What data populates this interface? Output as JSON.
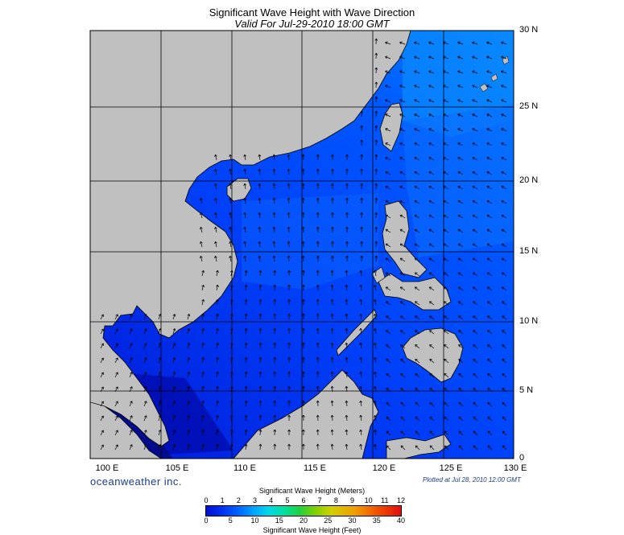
{
  "title": "Significant Wave Height with Wave Direction",
  "subtitle": "Valid For Jul-29-2010 18:00 GMT",
  "lon_labels": [
    "100 E",
    "105 E",
    "110 E",
    "115 E",
    "120 E",
    "125 E",
    "130 E"
  ],
  "lat_labels": [
    "30 N",
    "25 N",
    "20 N",
    "15 N",
    "10 N",
    "5 N",
    "0"
  ],
  "brand": "oceanweather inc.",
  "plotted": "Plotted at Jul 28, 2010 12:00 GMT",
  "colorbar": {
    "meters_title": "Significant Wave Height (Meters)",
    "feet_title": "Significant Wave Height (Feet)",
    "meters_ticks": [
      "0",
      "1",
      "2",
      "3",
      "4",
      "5",
      "6",
      "7",
      "8",
      "9",
      "10",
      "11",
      "12"
    ],
    "feet_ticks": [
      "0",
      "5",
      "10",
      "15",
      "20",
      "25",
      "30",
      "35",
      "40"
    ]
  },
  "colors": {
    "land": "#c0c0c0",
    "water_low": "#0018d8",
    "water_mid": "#0050ff",
    "water_high": "#0088ff",
    "grid": "#000000"
  }
}
